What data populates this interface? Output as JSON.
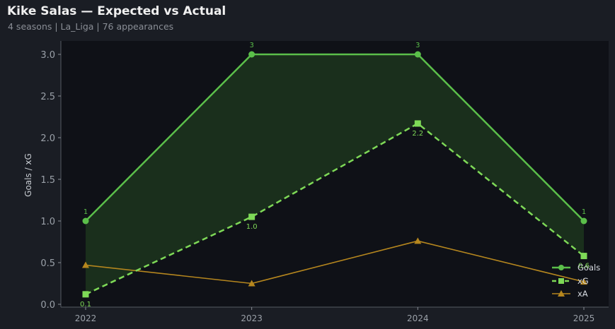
{
  "header": {
    "title": "Kike Salas — Expected vs Actual",
    "subtitle": "4 seasons | La_Liga | 76 appearances"
  },
  "colors": {
    "background": "#1a1d24",
    "plot_bg": "#0f1117",
    "goals": "#5bbf4a",
    "xg": "#7ed957",
    "xa": "#b5861e",
    "fill": "#1f3a1f"
  },
  "chart_data": {
    "type": "line",
    "title": "Kike Salas — Expected vs Actual",
    "xlabel": "",
    "ylabel": "Goals / xG",
    "categories": [
      "2022",
      "2023",
      "2024",
      "2025"
    ],
    "ylim": [
      0,
      3.05
    ],
    "yticks": [
      "0.0",
      "0.5",
      "1.0",
      "1.5",
      "2.0",
      "2.5",
      "3.0"
    ],
    "series": [
      {
        "name": "Goals",
        "values": [
          1,
          3,
          3,
          1
        ],
        "labels": [
          "1",
          "3",
          "3",
          "1"
        ],
        "style": "solid",
        "marker": "circle"
      },
      {
        "name": "xG",
        "values": [
          0.12,
          1.05,
          2.17,
          0.58
        ],
        "labels": [
          "0.1",
          "1.0",
          "2.2",
          "0.6"
        ],
        "style": "dashed",
        "marker": "square"
      },
      {
        "name": "xA",
        "values": [
          0.47,
          0.25,
          0.76,
          0.27
        ],
        "style": "solid",
        "marker": "triangle"
      }
    ],
    "fill_between": [
      "Goals",
      "xG"
    ],
    "grid": false,
    "legend": "bottom-right"
  }
}
